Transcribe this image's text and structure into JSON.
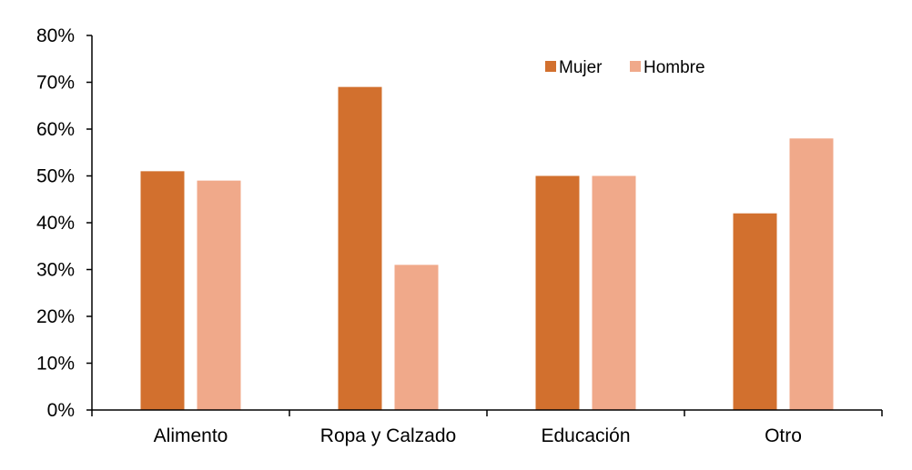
{
  "chart_data": {
    "type": "bar",
    "title": "",
    "xlabel": "",
    "ylabel": "",
    "categories": [
      "Alimento",
      "Ropa y Calzado",
      "Educación",
      "Otro"
    ],
    "series": [
      {
        "name": "Mujer",
        "values": [
          0.51,
          0.69,
          0.5,
          0.42
        ],
        "color": "#D2702E"
      },
      {
        "name": "Hombre",
        "values": [
          0.49,
          0.31,
          0.5,
          0.58
        ],
        "color": "#F0A98A"
      }
    ],
    "ylim": [
      0,
      0.8
    ],
    "yticks": [
      "0%",
      "10%",
      "20%",
      "30%",
      "40%",
      "50%",
      "60%",
      "70%",
      "80%"
    ],
    "grid": false,
    "legend_position": "top-right"
  }
}
